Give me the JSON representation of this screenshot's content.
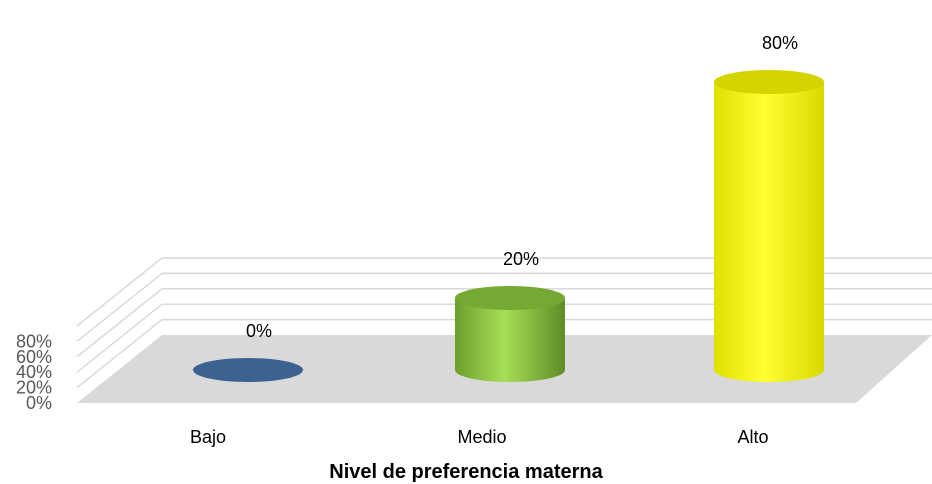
{
  "chart_data": {
    "type": "bar",
    "style": "3d-cylinder",
    "categories": [
      "Bajo",
      "Medio",
      "Alto"
    ],
    "values": [
      0,
      20,
      80
    ],
    "data_labels": [
      "0%",
      "20%",
      "80%"
    ],
    "colors": [
      "#3c6291",
      "#8cc63f",
      "#ffff00"
    ],
    "y_ticks": [
      "0%",
      "20%",
      "40%",
      "60%",
      "80%"
    ],
    "ylim": [
      0,
      100
    ],
    "xlabel": "Nivel de preferencia materna",
    "grid": true,
    "legend": "none"
  }
}
